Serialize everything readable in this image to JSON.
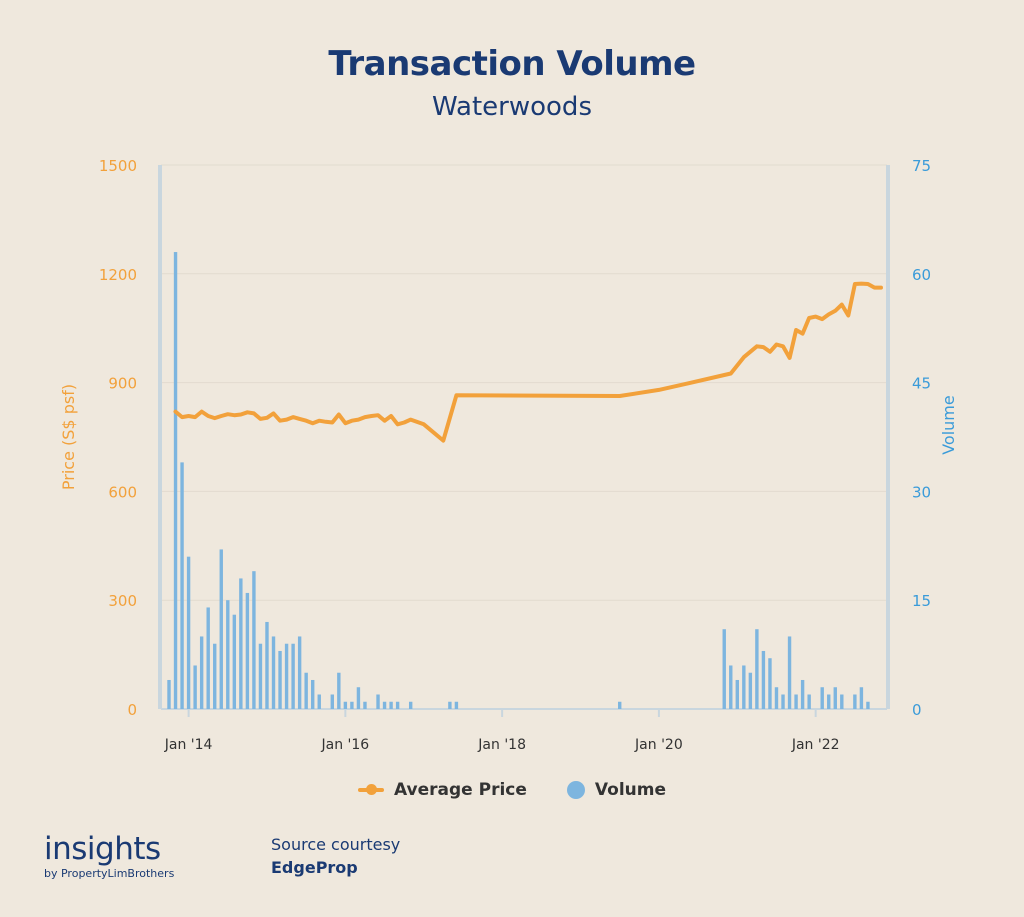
{
  "chart_data": {
    "type": "bar+line",
    "title": "Transaction Volume",
    "subtitle": "Waterwoods",
    "y_left": {
      "label": "Price (S$ psf)",
      "ticks": [
        "1500",
        "1200",
        "900",
        "600",
        "300",
        "0"
      ],
      "range": [
        0,
        1500
      ]
    },
    "y_right": {
      "label": "Volume",
      "ticks": [
        "75",
        "60",
        "45",
        "30",
        "15",
        "0"
      ],
      "range": [
        0,
        75
      ]
    },
    "x_ticks": [
      "Jan '14",
      "Jan '16",
      "Jan '18",
      "Jan '20",
      "Jan '22"
    ],
    "x_range": [
      "2013-10",
      "2022-11"
    ],
    "series": [
      {
        "name": "Average Price",
        "type": "line",
        "color": "#F2A13B",
        "points": [
          [
            "2013-11",
            820
          ],
          [
            "2013-12",
            805
          ],
          [
            "2014-01",
            808
          ],
          [
            "2014-02",
            805
          ],
          [
            "2014-03",
            820
          ],
          [
            "2014-04",
            808
          ],
          [
            "2014-05",
            802
          ],
          [
            "2014-06",
            808
          ],
          [
            "2014-07",
            813
          ],
          [
            "2014-08",
            810
          ],
          [
            "2014-09",
            812
          ],
          [
            "2014-10",
            818
          ],
          [
            "2014-11",
            815
          ],
          [
            "2014-12",
            800
          ],
          [
            "2015-01",
            803
          ],
          [
            "2015-02",
            815
          ],
          [
            "2015-03",
            795
          ],
          [
            "2015-04",
            798
          ],
          [
            "2015-05",
            805
          ],
          [
            "2015-06",
            800
          ],
          [
            "2015-07",
            795
          ],
          [
            "2015-08",
            788
          ],
          [
            "2015-09",
            795
          ],
          [
            "2015-10",
            792
          ],
          [
            "2015-11",
            790
          ],
          [
            "2015-12",
            812
          ],
          [
            "2016-01",
            788
          ],
          [
            "2016-02",
            795
          ],
          [
            "2016-03",
            798
          ],
          [
            "2016-04",
            805
          ],
          [
            "2016-05",
            808
          ],
          [
            "2016-06",
            810
          ],
          [
            "2016-07",
            795
          ],
          [
            "2016-08",
            808
          ],
          [
            "2016-09",
            785
          ],
          [
            "2016-10",
            790
          ],
          [
            "2016-11",
            798
          ],
          [
            "2017-01",
            785
          ],
          [
            "2017-04",
            740
          ],
          [
            "2017-06",
            865
          ],
          [
            "2019-07",
            863
          ],
          [
            "2020-01",
            880
          ],
          [
            "2020-06",
            900
          ],
          [
            "2020-12",
            925
          ],
          [
            "2021-02",
            970
          ],
          [
            "2021-04",
            1000
          ],
          [
            "2021-05",
            998
          ],
          [
            "2021-06",
            985
          ],
          [
            "2021-07",
            1005
          ],
          [
            "2021-08",
            1000
          ],
          [
            "2021-09",
            968
          ],
          [
            "2021-10",
            1045
          ],
          [
            "2021-11",
            1035
          ],
          [
            "2021-12",
            1078
          ],
          [
            "2022-01",
            1082
          ],
          [
            "2022-02",
            1075
          ],
          [
            "2022-03",
            1088
          ],
          [
            "2022-04",
            1098
          ],
          [
            "2022-05",
            1115
          ],
          [
            "2022-06",
            1085
          ],
          [
            "2022-07",
            1172
          ],
          [
            "2022-08",
            1173
          ],
          [
            "2022-09",
            1172
          ],
          [
            "2022-10",
            1162
          ],
          [
            "2022-11",
            1162
          ]
        ]
      },
      {
        "name": "Volume",
        "type": "bar",
        "color": "#7DB5DF",
        "points": [
          [
            "2013-10",
            4
          ],
          [
            "2013-11",
            63
          ],
          [
            "2013-12",
            34
          ],
          [
            "2014-01",
            21
          ],
          [
            "2014-02",
            6
          ],
          [
            "2014-03",
            10
          ],
          [
            "2014-04",
            14
          ],
          [
            "2014-05",
            9
          ],
          [
            "2014-06",
            22
          ],
          [
            "2014-07",
            15
          ],
          [
            "2014-08",
            13
          ],
          [
            "2014-09",
            18
          ],
          [
            "2014-10",
            16
          ],
          [
            "2014-11",
            19
          ],
          [
            "2014-12",
            9
          ],
          [
            "2015-01",
            12
          ],
          [
            "2015-02",
            10
          ],
          [
            "2015-03",
            8
          ],
          [
            "2015-04",
            9
          ],
          [
            "2015-05",
            9
          ],
          [
            "2015-06",
            10
          ],
          [
            "2015-07",
            5
          ],
          [
            "2015-08",
            4
          ],
          [
            "2015-09",
            2
          ],
          [
            "2015-11",
            2
          ],
          [
            "2015-12",
            5
          ],
          [
            "2016-01",
            1
          ],
          [
            "2016-02",
            1
          ],
          [
            "2016-03",
            3
          ],
          [
            "2016-04",
            1
          ],
          [
            "2016-06",
            2
          ],
          [
            "2016-07",
            1
          ],
          [
            "2016-08",
            1
          ],
          [
            "2016-09",
            1
          ],
          [
            "2016-11",
            1
          ],
          [
            "2017-05",
            1
          ],
          [
            "2017-06",
            1
          ],
          [
            "2019-07",
            1
          ],
          [
            "2020-11",
            11
          ],
          [
            "2020-12",
            6
          ],
          [
            "2021-01",
            4
          ],
          [
            "2021-02",
            6
          ],
          [
            "2021-03",
            5
          ],
          [
            "2021-04",
            11
          ],
          [
            "2021-05",
            8
          ],
          [
            "2021-06",
            7
          ],
          [
            "2021-07",
            3
          ],
          [
            "2021-08",
            2
          ],
          [
            "2021-09",
            10
          ],
          [
            "2021-10",
            2
          ],
          [
            "2021-11",
            4
          ],
          [
            "2021-12",
            2
          ],
          [
            "2022-02",
            3
          ],
          [
            "2022-03",
            2
          ],
          [
            "2022-04",
            3
          ],
          [
            "2022-05",
            2
          ],
          [
            "2022-07",
            2
          ],
          [
            "2022-08",
            3
          ],
          [
            "2022-09",
            1
          ]
        ]
      }
    ],
    "legend": [
      "Average Price",
      "Volume"
    ],
    "legend_position": "bottom-center",
    "grid": true
  },
  "brand": {
    "name": "insights",
    "sub": "by PropertyLimBrothers"
  },
  "source": {
    "line1": "Source courtesy",
    "line2": "EdgeProp"
  }
}
